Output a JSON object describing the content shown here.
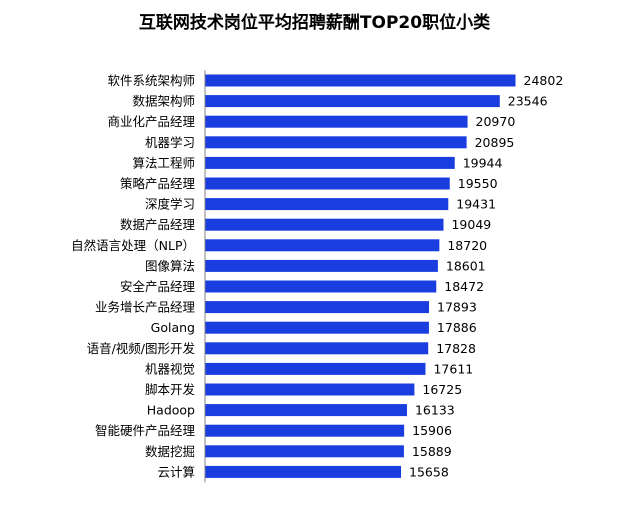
{
  "chart_data": {
    "type": "bar",
    "orientation": "horizontal",
    "title": "互联网技术岗位平均招聘薪酬TOP20职位小类",
    "categories": [
      "软件系统架构师",
      "数据架构师",
      "商业化产品经理",
      "机器学习",
      "算法工程师",
      "策略产品经理",
      "深度学习",
      "数据产品经理",
      "自然语言处理（NLP）",
      "图像算法",
      "安全产品经理",
      "业务增长产品经理",
      "Golang",
      "语音/视频/图形开发",
      "机器视觉",
      "脚本开发",
      "Hadoop",
      "智能硬件产品经理",
      "数据挖掘",
      "云计算"
    ],
    "values": [
      24802,
      23546,
      20970,
      20895,
      19944,
      19550,
      19431,
      19049,
      18720,
      18601,
      18472,
      17893,
      17886,
      17828,
      17611,
      16725,
      16133,
      15906,
      15889,
      15658
    ],
    "value_labels": [
      "24802",
      "23546",
      "20970",
      "20895",
      "19944",
      "19550",
      "19431",
      "19049",
      "18720",
      "18601",
      "18472",
      "17893",
      "17886",
      "17828",
      "17611",
      "16725",
      "16133",
      "15906",
      "15889",
      "15658"
    ],
    "xlim": [
      0,
      25000
    ],
    "bar_color": "#1a3de0",
    "axis_color": "#808080",
    "grid": false,
    "legend": "none",
    "data_labels": true
  }
}
